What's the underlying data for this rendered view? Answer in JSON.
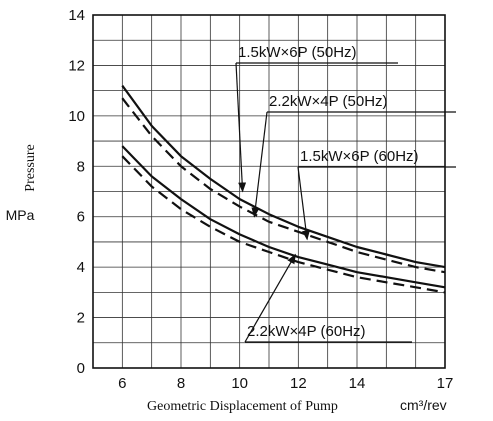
{
  "chart_data": {
    "type": "line",
    "title": "",
    "xlabel": "Geometric Displacement of Pump",
    "xunit": "cm³/rev",
    "ylabel": "Pressure",
    "yunit": "MPa",
    "xlim": [
      5,
      17
    ],
    "ylim": [
      0,
      14
    ],
    "xticks": [
      6,
      8,
      10,
      12,
      14,
      17
    ],
    "yticks": [
      0,
      2,
      4,
      6,
      8,
      10,
      12,
      14
    ],
    "grid": true,
    "series": [
      {
        "name": "1.5kW×6P (50Hz)",
        "style": "solid",
        "x": [
          6,
          7,
          8,
          9,
          10,
          11,
          12,
          13,
          14,
          15,
          16,
          17
        ],
        "y": [
          11.2,
          9.6,
          8.4,
          7.5,
          6.7,
          6.1,
          5.6,
          5.2,
          4.8,
          4.5,
          4.2,
          4.0
        ]
      },
      {
        "name": "2.2kW×4P (50Hz)",
        "style": "dashed",
        "x": [
          6,
          7,
          8,
          9,
          10,
          11,
          12,
          13,
          14,
          15,
          16,
          17
        ],
        "y": [
          10.7,
          9.2,
          8.0,
          7.1,
          6.4,
          5.8,
          5.4,
          5.0,
          4.6,
          4.3,
          4.0,
          3.8
        ]
      },
      {
        "name": "1.5kW×6P (60Hz)",
        "style": "solid",
        "x": [
          6,
          7,
          8,
          9,
          10,
          11,
          12,
          13,
          14,
          15,
          16,
          17
        ],
        "y": [
          8.8,
          7.6,
          6.7,
          5.9,
          5.3,
          4.8,
          4.4,
          4.1,
          3.8,
          3.6,
          3.4,
          3.2
        ]
      },
      {
        "name": "2.2kW×4P (60Hz)",
        "style": "dashed",
        "x": [
          6,
          7,
          8,
          9,
          10,
          11,
          12,
          13,
          14,
          15,
          16,
          17
        ],
        "y": [
          8.4,
          7.2,
          6.3,
          5.6,
          5.0,
          4.6,
          4.2,
          3.9,
          3.6,
          3.4,
          3.2,
          3.0
        ]
      }
    ]
  }
}
